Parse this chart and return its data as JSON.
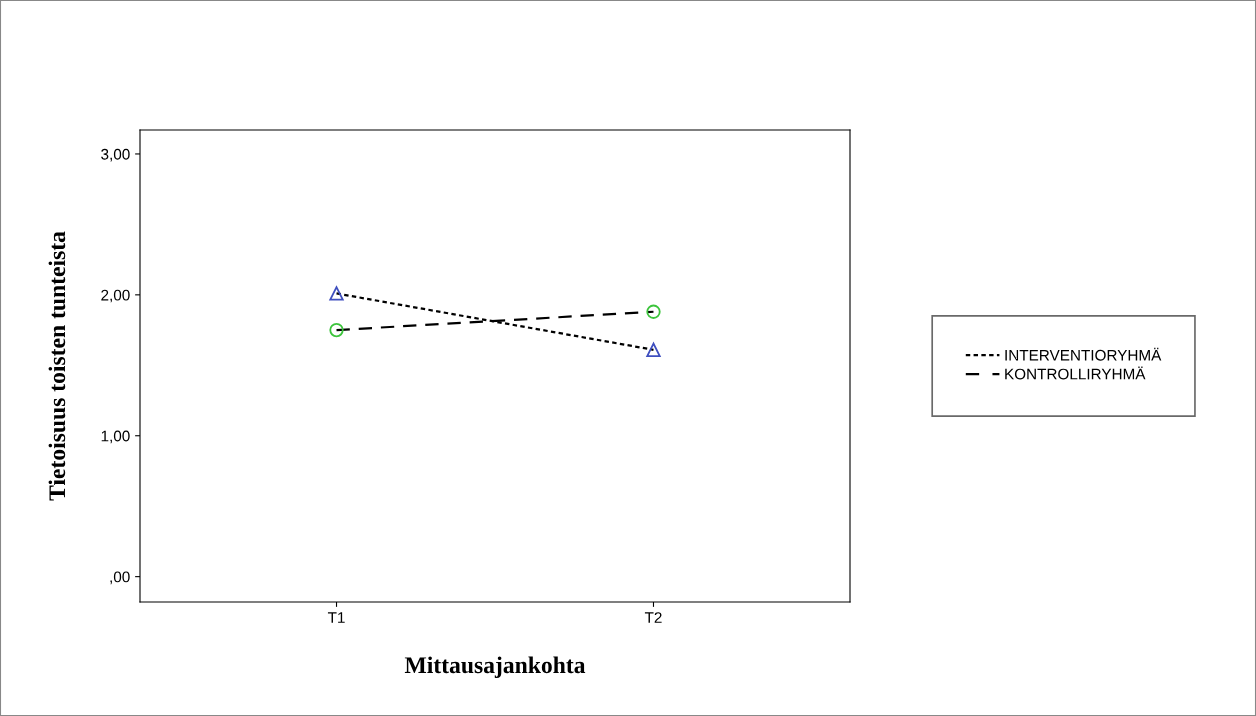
{
  "chart_data": {
    "type": "line",
    "xlabel": "Mittausajankohta",
    "ylabel": "Tietoisuus toisten tunteista",
    "categories": [
      "T1",
      "T2"
    ],
    "series": [
      {
        "name": "INTERVENTIORYHMÄ",
        "color": "#000000",
        "colors": [
          "#3f4fbf",
          "#3f4fbf"
        ],
        "marker": "triangle",
        "line_style": "dotted",
        "values": [
          2.01,
          1.61
        ]
      },
      {
        "name": "KONTROLLIRYHMÄ",
        "color": "#000000",
        "colors": [
          "#3cc43c",
          "#3cc43c"
        ],
        "marker": "circle",
        "line_style": "dashed",
        "values": [
          1.75,
          1.88
        ]
      }
    ],
    "ylim": [
      -0.18,
      3.17
    ],
    "yticks": [
      {
        "value": 0,
        "label": ",00"
      },
      {
        "value": 1,
        "label": "1,00"
      },
      {
        "value": 2,
        "label": "2,00"
      },
      {
        "value": 3,
        "label": "3,00"
      }
    ],
    "grid": false,
    "legend": "right"
  }
}
